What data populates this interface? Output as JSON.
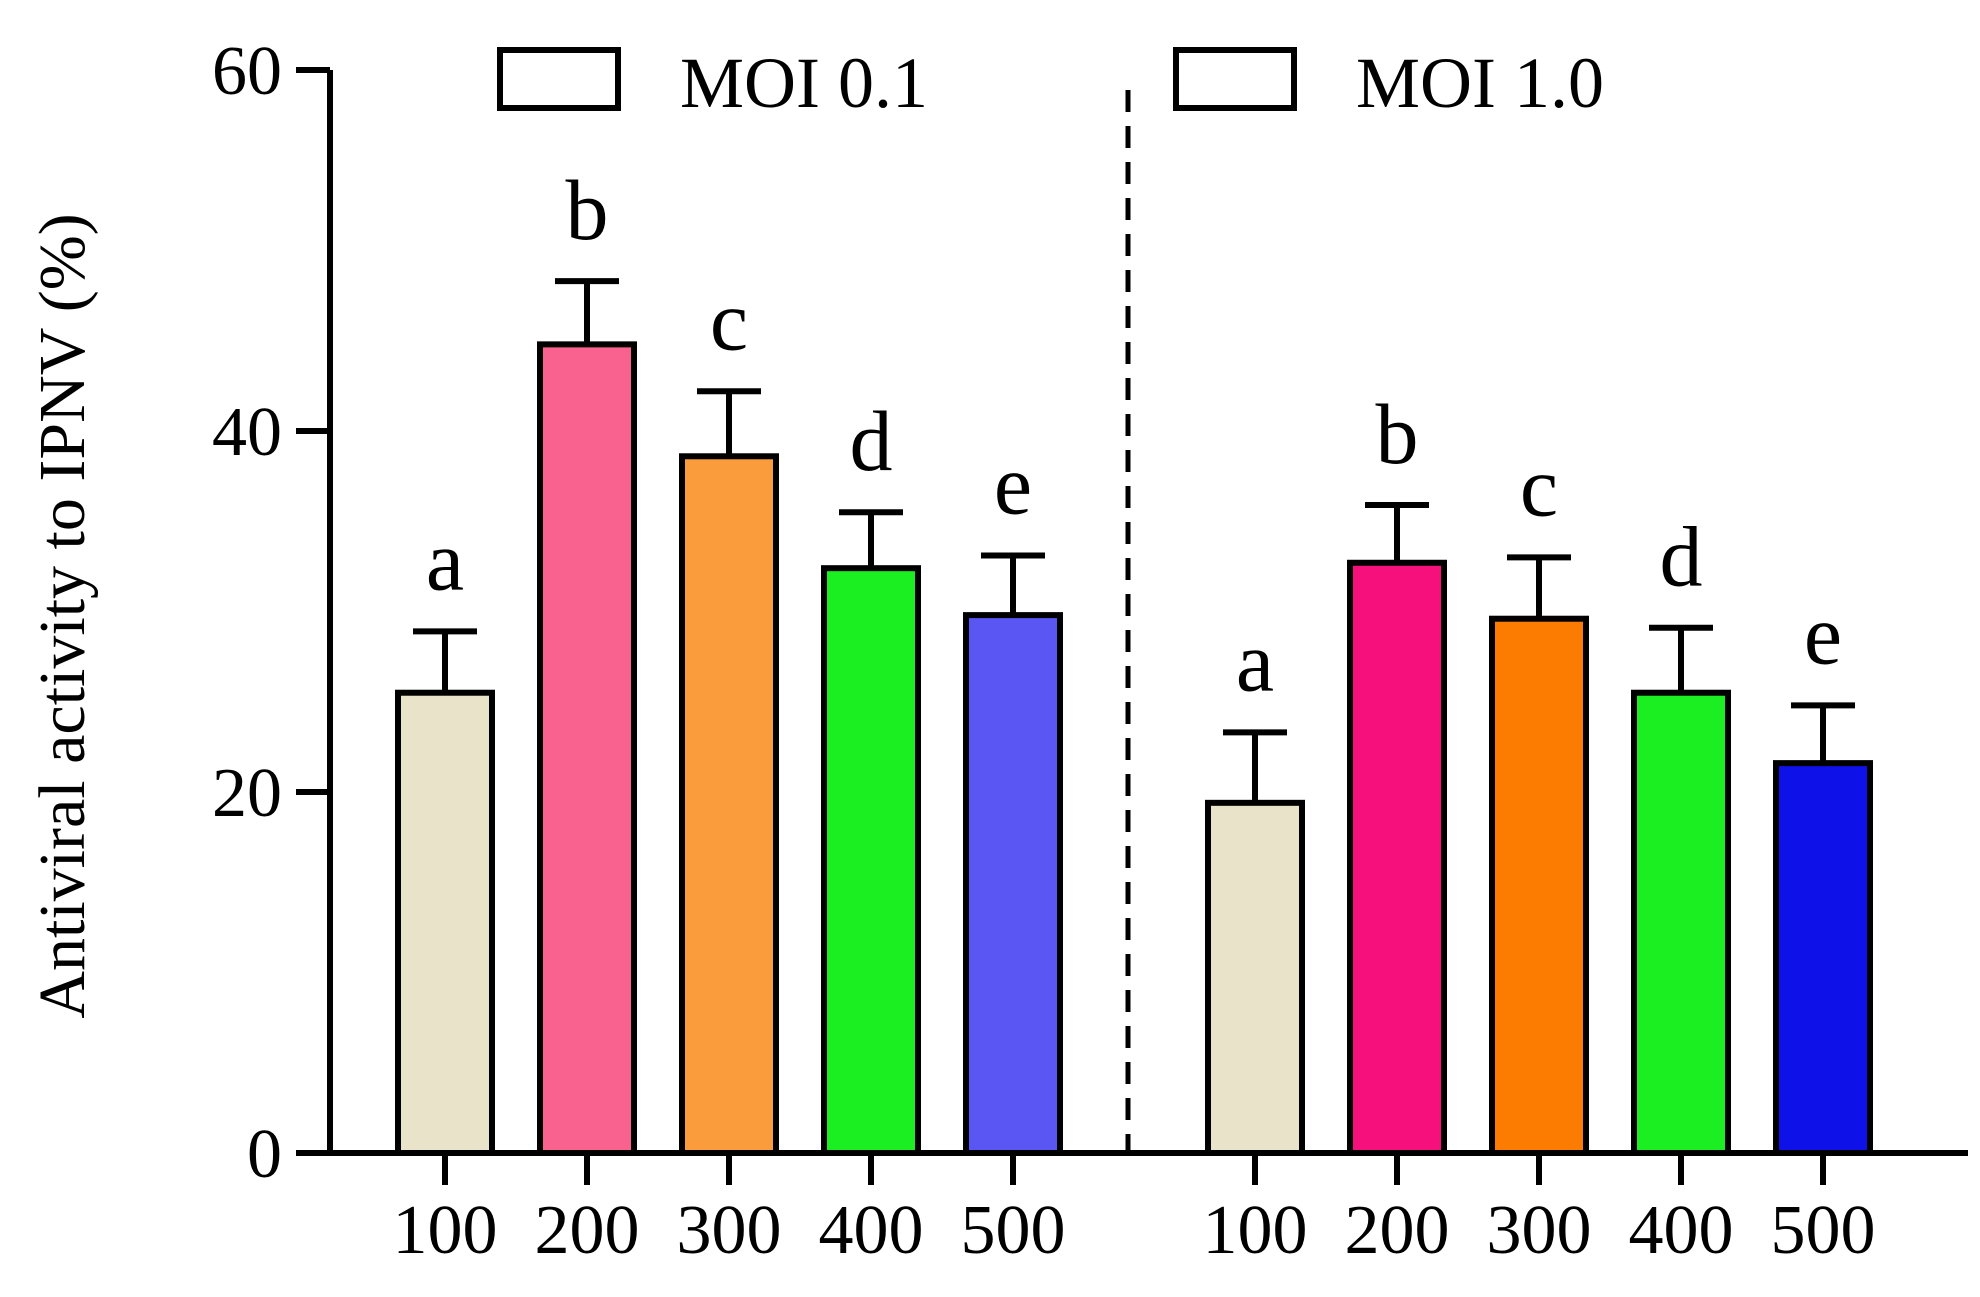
{
  "chart_data": {
    "type": "bar",
    "title": "",
    "xlabel": "",
    "ylabel": "Antiviral activity to IPNV (%)",
    "ylim": [
      0,
      60
    ],
    "yticks": [
      0,
      20,
      40,
      60
    ],
    "ytick_labels": [
      "0",
      "20",
      "40",
      "60"
    ],
    "grid": false,
    "legend_placement": "top",
    "categories": [
      "100",
      "200",
      "300",
      "400",
      "500"
    ],
    "groups": [
      {
        "name": "MOI 0.1",
        "legend_label": "MOI 0.1",
        "values": [
          25.5,
          44.8,
          38.6,
          32.4,
          29.8
        ],
        "errors": [
          3.4,
          3.5,
          3.6,
          3.1,
          3.3
        ],
        "letters": [
          "a",
          "b",
          "c",
          "d",
          "e"
        ],
        "colors": [
          "#e9e4c9",
          "#f9628e",
          "#fb9c3c",
          "#1bef21",
          "#5a56f4"
        ]
      },
      {
        "name": "MOI 1.0",
        "legend_label": "MOI 1.0",
        "values": [
          19.4,
          32.7,
          29.6,
          25.5,
          21.6
        ],
        "errors": [
          3.9,
          3.2,
          3.4,
          3.6,
          3.2
        ],
        "letters": [
          "a",
          "b",
          "c",
          "d",
          "e"
        ],
        "colors": [
          "#e9e4c9",
          "#f5107c",
          "#fb7c00",
          "#1bef21",
          "#0e11e8"
        ]
      }
    ]
  }
}
